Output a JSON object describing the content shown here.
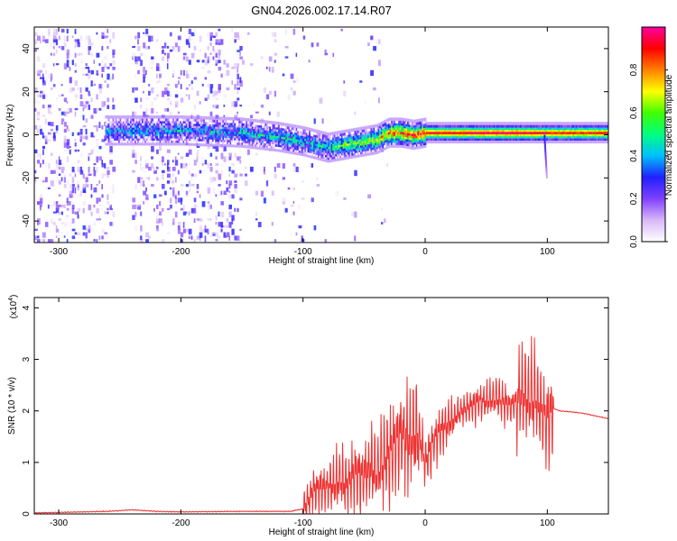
{
  "title": "GN04.2026.002.17.14.R07",
  "chart_data": [
    {
      "type": "heatmap",
      "xlabel": "Height of straight line (km)",
      "ylabel": "Frequency (Hz)",
      "xlim": [
        -320,
        150
      ],
      "ylim": [
        -50,
        50
      ],
      "xticks": [
        -300,
        -200,
        -100,
        0,
        100
      ],
      "yticks": [
        -40,
        -20,
        0,
        20,
        40
      ],
      "colorbar": {
        "label": "Normalized spectral amplitude",
        "range": [
          0,
          1
        ],
        "ticks": [
          "0.0",
          "0.2",
          "0.4",
          "0.6",
          "0.8"
        ],
        "tick_values": [
          0,
          0.2,
          0.4,
          0.6,
          0.8
        ],
        "colormap": [
          "#ffffff",
          "#d8b8f8",
          "#8040ff",
          "#2020ff",
          "#00c0ff",
          "#00ff80",
          "#40ff00",
          "#ffff00",
          "#ff8000",
          "#ff0000",
          "#ff00a0"
        ]
      },
      "band_profile": {
        "x_km": [
          -260,
          -200,
          -150,
          -120,
          -100,
          -80,
          -70,
          -60,
          -50,
          -40,
          -30,
          -20,
          -10,
          0,
          50,
          90,
          100,
          150
        ],
        "center_hz": [
          2,
          2,
          1,
          -1,
          -3,
          -6,
          -5,
          -4,
          -3,
          -2,
          1,
          1,
          0,
          1,
          1,
          1,
          1,
          1
        ],
        "amplitude": [
          0.35,
          0.35,
          0.4,
          0.45,
          0.45,
          0.45,
          0.55,
          0.6,
          0.6,
          0.65,
          0.8,
          0.85,
          0.85,
          0.9,
          0.95,
          0.95,
          0.9,
          0.9
        ]
      }
    },
    {
      "type": "line",
      "xlabel": "Height of straight line (km)",
      "ylabel": "SNR (10 * v/v)",
      "y_multiplier": "(x10",
      "y_multiplier_exp": "4",
      "y_multiplier_close": ")",
      "xlim": [
        -320,
        150
      ],
      "ylim": [
        0,
        4.2
      ],
      "xticks": [
        -300,
        -200,
        -100,
        0,
        100
      ],
      "yticks": [
        0,
        1,
        2,
        3,
        4
      ],
      "color": "#ee3333",
      "series": [
        {
          "x": [
            -320,
            -300,
            -260,
            -240,
            -220,
            -200,
            -150,
            -110,
            -100,
            -95,
            -90,
            -85,
            -80,
            -75,
            -70,
            -65,
            -60,
            -55,
            -50,
            -45,
            -40,
            -35,
            -30,
            -25,
            -20,
            -15,
            -10,
            -5,
            0,
            5,
            10,
            15,
            20,
            25,
            30,
            35,
            40,
            45,
            50,
            55,
            60,
            65,
            70,
            75,
            80,
            85,
            90,
            95,
            100,
            105,
            110,
            120,
            130,
            140,
            150
          ],
          "y": [
            0.02,
            0.03,
            0.05,
            0.08,
            0.05,
            0.04,
            0.05,
            0.05,
            0.1,
            0.3,
            0.5,
            0.45,
            0.5,
            0.6,
            0.7,
            0.55,
            0.7,
            0.8,
            0.75,
            0.9,
            0.8,
            1.0,
            1.1,
            1.3,
            1.6,
            1.4,
            1.5,
            1.6,
            1.0,
            1.3,
            1.5,
            1.7,
            1.8,
            1.9,
            2.0,
            2.05,
            2.1,
            2.2,
            2.2,
            2.25,
            2.2,
            2.15,
            2.1,
            2.2,
            2.3,
            2.2,
            2.3,
            2.0,
            1.8,
            2.05,
            2.0,
            1.98,
            1.95,
            1.9,
            1.85
          ]
        }
      ]
    }
  ]
}
